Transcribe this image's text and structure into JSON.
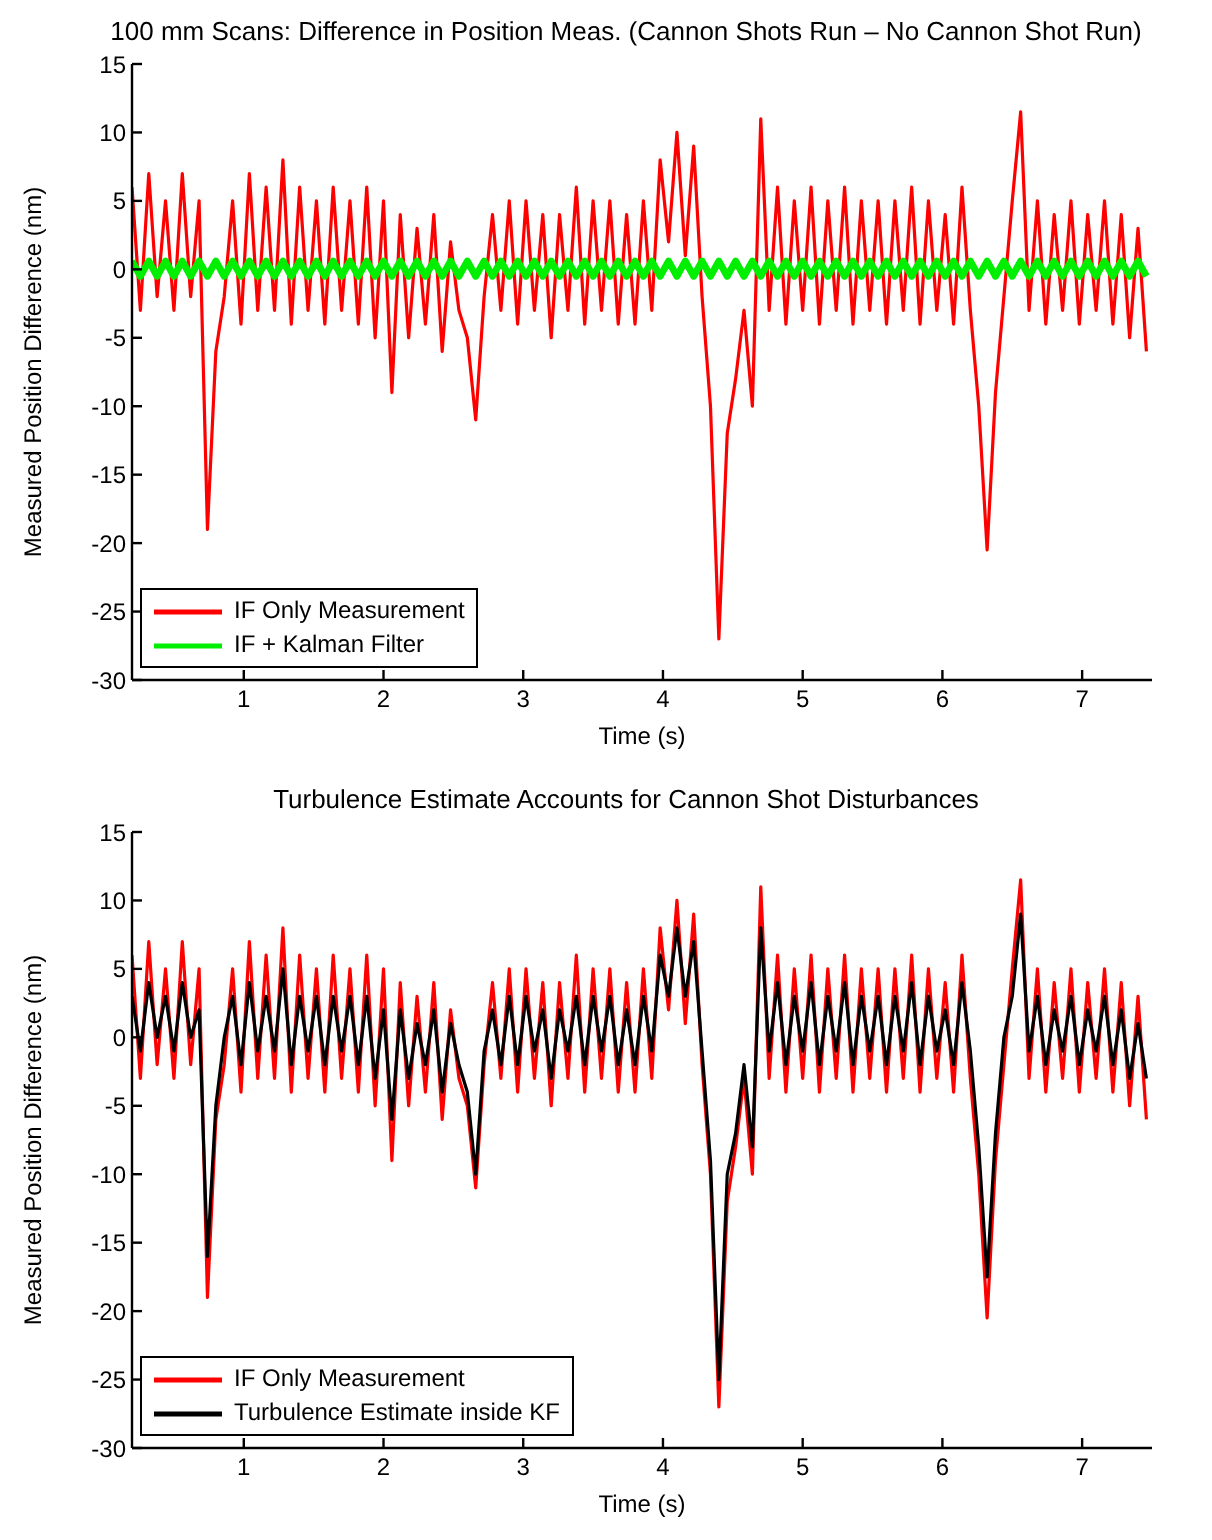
{
  "chart_data": [
    {
      "type": "line",
      "title": "100 mm Scans: Difference in Position Meas. (Cannon Shots Run – No Cannon Shot Run)",
      "xlabel": "Time (s)",
      "ylabel": "Measured Position Difference (nm)",
      "legend": "bottom left",
      "xlim": [
        0.2,
        7.5
      ],
      "xticks": [
        1,
        2,
        3,
        4,
        5,
        6,
        7
      ],
      "ylim": [
        -30,
        15
      ],
      "yticks": [
        -30,
        -25,
        -20,
        -15,
        -10,
        -5,
        0,
        5,
        10,
        15
      ],
      "x": [
        0.2,
        0.26,
        0.32,
        0.38,
        0.44,
        0.5,
        0.56,
        0.62,
        0.68,
        0.74,
        0.8,
        0.86,
        0.92,
        0.98,
        1.04,
        1.1,
        1.16,
        1.22,
        1.28,
        1.34,
        1.4,
        1.46,
        1.52,
        1.58,
        1.64,
        1.7,
        1.76,
        1.82,
        1.88,
        1.94,
        2.0,
        2.06,
        2.12,
        2.18,
        2.24,
        2.3,
        2.36,
        2.42,
        2.48,
        2.54,
        2.6,
        2.66,
        2.72,
        2.78,
        2.84,
        2.9,
        2.96,
        3.02,
        3.08,
        3.14,
        3.2,
        3.26,
        3.32,
        3.38,
        3.44,
        3.5,
        3.56,
        3.62,
        3.68,
        3.74,
        3.8,
        3.86,
        3.92,
        3.98,
        4.04,
        4.1,
        4.16,
        4.22,
        4.28,
        4.34,
        4.4,
        4.46,
        4.52,
        4.58,
        4.64,
        4.7,
        4.76,
        4.82,
        4.88,
        4.94,
        5.0,
        5.06,
        5.12,
        5.18,
        5.24,
        5.3,
        5.36,
        5.42,
        5.48,
        5.54,
        5.6,
        5.66,
        5.72,
        5.78,
        5.84,
        5.9,
        5.96,
        6.02,
        6.08,
        6.14,
        6.2,
        6.26,
        6.32,
        6.38,
        6.44,
        6.5,
        6.56,
        6.62,
        6.68,
        6.74,
        6.8,
        6.86,
        6.92,
        6.98,
        7.04,
        7.1,
        7.16,
        7.22,
        7.28,
        7.34,
        7.4,
        7.46
      ],
      "series": [
        {
          "name": "IF Only Measurement",
          "color": "#ff0000",
          "values": [
            6,
            -3,
            7,
            -2,
            5,
            -3,
            7,
            -2,
            5,
            -19,
            -6,
            -2,
            5,
            -4,
            7,
            -3,
            6,
            -3,
            8,
            -4,
            6,
            -3,
            5,
            -4,
            6,
            -3,
            5,
            -4,
            6,
            -5,
            5,
            -9,
            4,
            -5,
            3,
            -4,
            4,
            -6,
            2,
            -3,
            -5,
            -11,
            -2,
            4,
            -3,
            5,
            -4,
            5,
            -3,
            4,
            -5,
            4,
            -3,
            6,
            -4,
            5,
            -3,
            5,
            -4,
            4,
            -4,
            5,
            -3,
            8,
            2,
            10,
            1,
            9,
            -2,
            -10,
            -27,
            -12,
            -8,
            -3,
            -10,
            11,
            -3,
            6,
            -4,
            5,
            -3,
            6,
            -4,
            5,
            -3,
            6,
            -4,
            5,
            -3,
            5,
            -4,
            5,
            -3,
            6,
            -4,
            5,
            -3,
            4,
            -4,
            6,
            -3,
            -10,
            -20.5,
            -9,
            -2,
            5,
            11.5,
            -3,
            5,
            -4,
            4,
            -3,
            5,
            -4,
            4,
            -3,
            5,
            -4,
            4,
            -5,
            3,
            -6
          ]
        },
        {
          "name": "IF + Kalman Filter",
          "color": "#00ee00",
          "values": [
            0.6,
            -0.5,
            0.6,
            -0.5,
            0.6,
            -0.5,
            0.6,
            -0.5,
            0.6,
            -0.5,
            0.6,
            -0.5,
            0.6,
            -0.5,
            0.6,
            -0.5,
            0.6,
            -0.5,
            0.6,
            -0.5,
            0.6,
            -0.5,
            0.6,
            -0.5,
            0.6,
            -0.5,
            0.6,
            -0.5,
            0.6,
            -0.5,
            0.6,
            -0.5,
            0.6,
            -0.5,
            0.6,
            -0.5,
            0.6,
            -0.5,
            0.6,
            -0.5,
            0.6,
            -0.5,
            0.6,
            -0.5,
            0.6,
            -0.5,
            0.6,
            -0.5,
            0.6,
            -0.5,
            0.6,
            -0.5,
            0.6,
            -0.5,
            0.6,
            -0.5,
            0.6,
            -0.5,
            0.6,
            -0.5,
            0.6,
            -0.5,
            0.6,
            -0.5,
            0.6,
            -0.5,
            0.6,
            -0.5,
            0.6,
            -0.5,
            0.6,
            -0.5,
            0.6,
            -0.5,
            0.6,
            -0.5,
            0.6,
            -0.5,
            0.6,
            -0.5,
            0.6,
            -0.5,
            0.6,
            -0.5,
            0.6,
            -0.5,
            0.6,
            -0.5,
            0.6,
            -0.5,
            0.6,
            -0.5,
            0.6,
            -0.5,
            0.6,
            -0.5,
            0.6,
            -0.5,
            0.6,
            -0.5,
            0.6,
            -0.5,
            0.6,
            -0.5,
            0.6,
            -0.5,
            0.6,
            -0.5,
            0.6,
            -0.5,
            0.6,
            -0.5,
            0.6,
            -0.5,
            0.6,
            -0.5,
            0.6,
            -0.5,
            0.6,
            -0.5,
            0.6,
            -0.5
          ]
        }
      ]
    },
    {
      "type": "line",
      "title": "Turbulence Estimate Accounts for Cannon Shot Disturbances",
      "xlabel": "Time (s)",
      "ylabel": "Measured Position Difference (nm)",
      "legend": "bottom left",
      "xlim": [
        0.2,
        7.5
      ],
      "xticks": [
        1,
        2,
        3,
        4,
        5,
        6,
        7
      ],
      "ylim": [
        -30,
        15
      ],
      "yticks": [
        -30,
        -25,
        -20,
        -15,
        -10,
        -5,
        0,
        5,
        10,
        15
      ],
      "x": [
        0.2,
        0.26,
        0.32,
        0.38,
        0.44,
        0.5,
        0.56,
        0.62,
        0.68,
        0.74,
        0.8,
        0.86,
        0.92,
        0.98,
        1.04,
        1.1,
        1.16,
        1.22,
        1.28,
        1.34,
        1.4,
        1.46,
        1.52,
        1.58,
        1.64,
        1.7,
        1.76,
        1.82,
        1.88,
        1.94,
        2.0,
        2.06,
        2.12,
        2.18,
        2.24,
        2.3,
        2.36,
        2.42,
        2.48,
        2.54,
        2.6,
        2.66,
        2.72,
        2.78,
        2.84,
        2.9,
        2.96,
        3.02,
        3.08,
        3.14,
        3.2,
        3.26,
        3.32,
        3.38,
        3.44,
        3.5,
        3.56,
        3.62,
        3.68,
        3.74,
        3.8,
        3.86,
        3.92,
        3.98,
        4.04,
        4.1,
        4.16,
        4.22,
        4.28,
        4.34,
        4.4,
        4.46,
        4.52,
        4.58,
        4.64,
        4.7,
        4.76,
        4.82,
        4.88,
        4.94,
        5.0,
        5.06,
        5.12,
        5.18,
        5.24,
        5.3,
        5.36,
        5.42,
        5.48,
        5.54,
        5.6,
        5.66,
        5.72,
        5.78,
        5.84,
        5.9,
        5.96,
        6.02,
        6.08,
        6.14,
        6.2,
        6.26,
        6.32,
        6.38,
        6.44,
        6.5,
        6.56,
        6.62,
        6.68,
        6.74,
        6.8,
        6.86,
        6.92,
        6.98,
        7.04,
        7.1,
        7.16,
        7.22,
        7.28,
        7.34,
        7.4,
        7.46
      ],
      "series": [
        {
          "name": "IF Only Measurement",
          "color": "#ff0000",
          "values": [
            6,
            -3,
            7,
            -2,
            5,
            -3,
            7,
            -2,
            5,
            -19,
            -6,
            -2,
            5,
            -4,
            7,
            -3,
            6,
            -3,
            8,
            -4,
            6,
            -3,
            5,
            -4,
            6,
            -3,
            5,
            -4,
            6,
            -5,
            5,
            -9,
            4,
            -5,
            3,
            -4,
            4,
            -6,
            2,
            -3,
            -5,
            -11,
            -2,
            4,
            -3,
            5,
            -4,
            5,
            -3,
            4,
            -5,
            4,
            -3,
            6,
            -4,
            5,
            -3,
            5,
            -4,
            4,
            -4,
            5,
            -3,
            8,
            2,
            10,
            1,
            9,
            -2,
            -10,
            -27,
            -12,
            -8,
            -3,
            -10,
            11,
            -3,
            6,
            -4,
            5,
            -3,
            6,
            -4,
            5,
            -3,
            6,
            -4,
            5,
            -3,
            5,
            -4,
            5,
            -3,
            6,
            -4,
            5,
            -3,
            4,
            -4,
            6,
            -3,
            -10,
            -20.5,
            -9,
            -2,
            5,
            11.5,
            -3,
            5,
            -4,
            4,
            -3,
            5,
            -4,
            4,
            -3,
            5,
            -4,
            4,
            -5,
            3,
            -6
          ]
        },
        {
          "name": "Turbulence Estimate inside KF",
          "color": "#000000",
          "values": [
            3,
            -1,
            4,
            0,
            3,
            -1,
            4,
            0,
            2,
            -16,
            -5,
            0,
            3,
            -2,
            4,
            -1,
            3,
            -1,
            5,
            -2,
            3,
            -1,
            3,
            -2,
            3,
            -1,
            3,
            -2,
            3,
            -3,
            2,
            -6,
            2,
            -3,
            1,
            -2,
            2,
            -4,
            1,
            -2,
            -4,
            -10,
            -1,
            2,
            -2,
            3,
            -2,
            3,
            -1,
            2,
            -3,
            2,
            -1,
            3,
            -2,
            3,
            -1,
            3,
            -2,
            2,
            -2,
            3,
            -1,
            6,
            3,
            8,
            3,
            7,
            -1,
            -9,
            -25,
            -10,
            -7,
            -2,
            -8,
            8,
            -1,
            4,
            -2,
            3,
            -1,
            4,
            -2,
            3,
            -1,
            4,
            -2,
            3,
            -1,
            3,
            -2,
            3,
            -1,
            4,
            -2,
            3,
            -1,
            2,
            -2,
            4,
            -1,
            -8,
            -17.5,
            -7,
            0,
            3,
            9,
            -1,
            3,
            -2,
            2,
            -1,
            3,
            -2,
            2,
            -1,
            3,
            -2,
            2,
            -3,
            1,
            -3
          ]
        }
      ]
    }
  ]
}
